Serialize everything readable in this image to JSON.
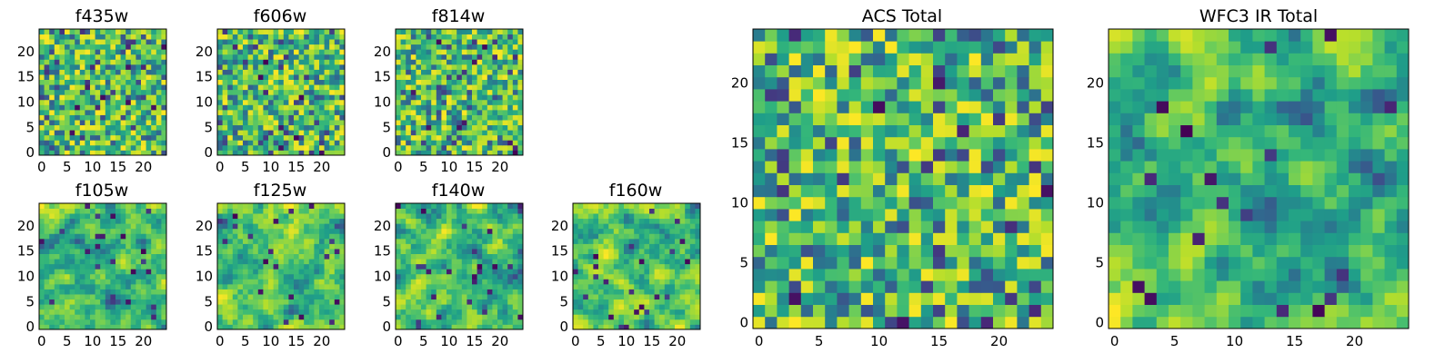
{
  "chart_data": [
    {
      "type": "heatmap",
      "title": "f435w",
      "grid_size": 25,
      "colormap": "viridis",
      "xticks": [
        "0",
        "5",
        "10",
        "15",
        "20"
      ],
      "yticks": [
        "0",
        "5",
        "10",
        "15",
        "20"
      ],
      "texture": "noise"
    },
    {
      "type": "heatmap",
      "title": "f606w",
      "grid_size": 25,
      "colormap": "viridis",
      "xticks": [
        "0",
        "5",
        "10",
        "15",
        "20"
      ],
      "yticks": [
        "0",
        "5",
        "10",
        "15",
        "20"
      ],
      "texture": "noise"
    },
    {
      "type": "heatmap",
      "title": "f814w",
      "grid_size": 25,
      "colormap": "viridis",
      "xticks": [
        "0",
        "5",
        "10",
        "15",
        "20"
      ],
      "yticks": [
        "0",
        "5",
        "10",
        "15",
        "20"
      ],
      "texture": "noise"
    },
    {
      "type": "heatmap",
      "title": "f105w",
      "grid_size": 25,
      "colormap": "viridis",
      "xticks": [
        "0",
        "5",
        "10",
        "15",
        "20"
      ],
      "yticks": [
        "0",
        "5",
        "10",
        "15",
        "20"
      ],
      "texture": "smooth"
    },
    {
      "type": "heatmap",
      "title": "f125w",
      "grid_size": 25,
      "colormap": "viridis",
      "xticks": [
        "0",
        "5",
        "10",
        "15",
        "20"
      ],
      "yticks": [
        "0",
        "5",
        "10",
        "15",
        "20"
      ],
      "texture": "smooth"
    },
    {
      "type": "heatmap",
      "title": "f140w",
      "grid_size": 25,
      "colormap": "viridis",
      "xticks": [
        "0",
        "5",
        "10",
        "15",
        "20"
      ],
      "yticks": [
        "0",
        "5",
        "10",
        "15",
        "20"
      ],
      "texture": "smooth"
    },
    {
      "type": "heatmap",
      "title": "f160w",
      "grid_size": 25,
      "colormap": "viridis",
      "xticks": [
        "0",
        "5",
        "10",
        "15",
        "20"
      ],
      "yticks": [
        "0",
        "5",
        "10",
        "15",
        "20"
      ],
      "texture": "smooth"
    },
    {
      "type": "heatmap",
      "title": "ACS Total",
      "grid_size": 25,
      "colormap": "viridis",
      "xticks": [
        "0",
        "5",
        "10",
        "15",
        "20"
      ],
      "yticks": [
        "0",
        "5",
        "10",
        "15",
        "20"
      ],
      "texture": "noise"
    },
    {
      "type": "heatmap",
      "title": "WFC3 IR Total",
      "grid_size": 25,
      "colormap": "viridis",
      "xticks": [
        "0",
        "5",
        "10",
        "15",
        "20"
      ],
      "yticks": [
        "0",
        "5",
        "10",
        "15",
        "20"
      ],
      "texture": "smooth"
    }
  ]
}
